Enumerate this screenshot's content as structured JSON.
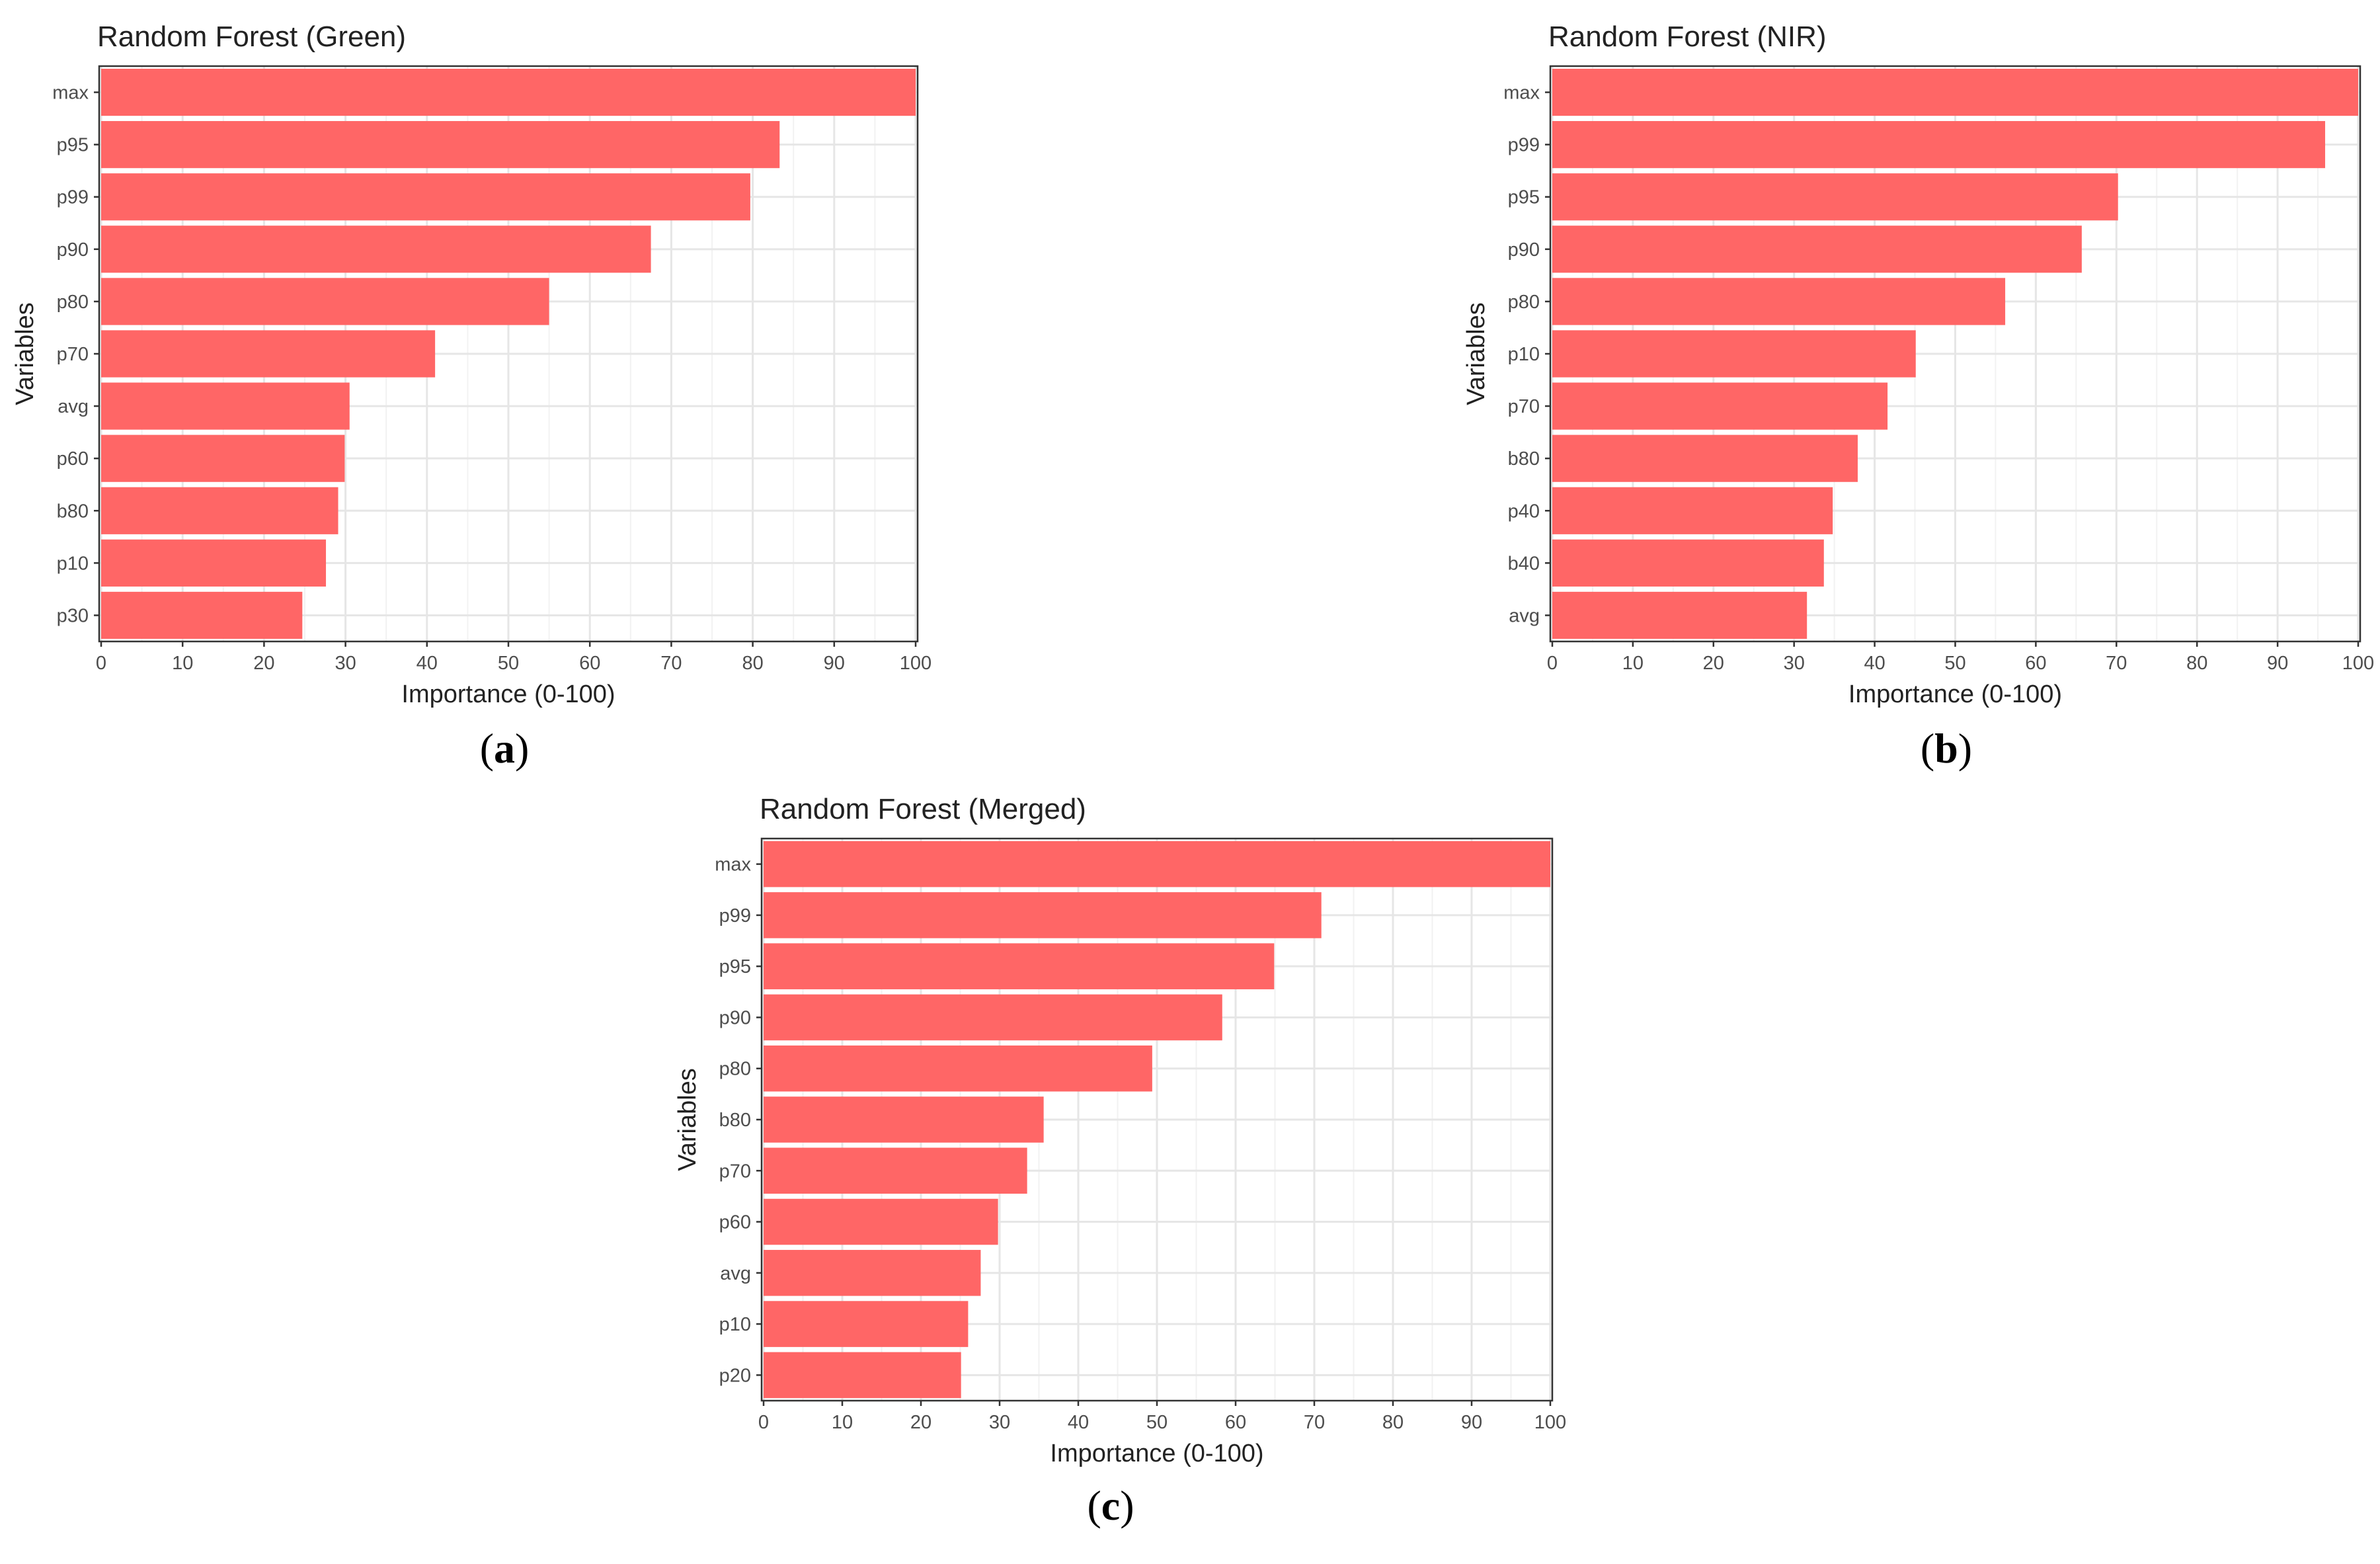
{
  "chart_data": [
    {
      "type": "bar",
      "orientation": "horizontal",
      "title": "Random Forest (Green)",
      "xlabel": "Importance (0-100)",
      "ylabel": "Variables",
      "xlim": [
        0,
        100
      ],
      "xticks": [
        "0",
        "10",
        "20",
        "30",
        "40",
        "50",
        "60",
        "70",
        "80",
        "90",
        "100"
      ],
      "categories": [
        "max",
        "p95",
        "p99",
        "p90",
        "p80",
        "p70",
        "avg",
        "p60",
        "b80",
        "p10",
        "p30"
      ],
      "values": [
        100,
        83.3,
        79.7,
        67.5,
        55.0,
        41.0,
        30.5,
        29.9,
        29.1,
        27.6,
        24.7
      ],
      "color": "#FF6666",
      "caption": "a"
    },
    {
      "type": "bar",
      "orientation": "horizontal",
      "title": "Random Forest (NIR)",
      "xlabel": "Importance (0-100)",
      "ylabel": "Variables",
      "xlim": [
        0,
        100
      ],
      "xticks": [
        "0",
        "10",
        "20",
        "30",
        "40",
        "50",
        "60",
        "70",
        "80",
        "90",
        "100"
      ],
      "categories": [
        "max",
        "p99",
        "p95",
        "p90",
        "p80",
        "p10",
        "p70",
        "b80",
        "p40",
        "b40",
        "avg"
      ],
      "values": [
        100,
        95.9,
        70.2,
        65.7,
        56.2,
        45.1,
        41.6,
        37.9,
        34.8,
        33.7,
        31.6
      ],
      "color": "#FF6666",
      "caption": "b"
    },
    {
      "type": "bar",
      "orientation": "horizontal",
      "title": "Random Forest (Merged)",
      "xlabel": "Importance (0-100)",
      "ylabel": "Variables",
      "xlim": [
        0,
        100
      ],
      "xticks": [
        "0",
        "10",
        "20",
        "30",
        "40",
        "50",
        "60",
        "70",
        "80",
        "90",
        "100"
      ],
      "categories": [
        "max",
        "p99",
        "p95",
        "p90",
        "p80",
        "b80",
        "p70",
        "p60",
        "avg",
        "p10",
        "p20"
      ],
      "values": [
        100,
        70.9,
        64.9,
        58.3,
        49.4,
        35.6,
        33.5,
        29.8,
        27.6,
        26.0,
        25.1
      ],
      "color": "#FF6666",
      "caption": "c"
    }
  ]
}
